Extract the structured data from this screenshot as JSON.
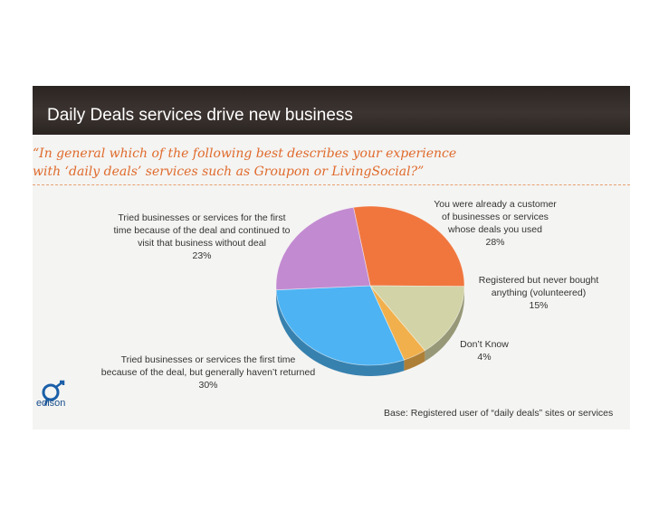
{
  "slide": {
    "title": "Daily Deals services drive new business",
    "subtitle_line1": "“In general which of the following best describes your experience",
    "subtitle_line2": "with ‘daily deals’ services such as Groupon or LivingSocial?”",
    "base_note": "Base: Registered user of “daily deals” sites or services",
    "logo_text": "edison"
  },
  "chart_data": {
    "type": "pie",
    "title": "",
    "slices": [
      {
        "label_lines": [
          "You were already a customer",
          "of businesses or services",
          "whose deals you used",
          "28%"
        ],
        "value": 28,
        "color": "#f0763e"
      },
      {
        "label_lines": [
          "Registered but never bought",
          "anything (volunteered)",
          "15%"
        ],
        "value": 15,
        "color": "#d2d3a6"
      },
      {
        "label_lines": [
          "Don’t Know",
          "4%"
        ],
        "value": 4,
        "color": "#f1b04c"
      },
      {
        "label_lines": [
          "Tried businesses or services the first time",
          "because of the deal, but generally haven’t returned",
          "30%"
        ],
        "value": 30,
        "color": "#4db3f3"
      },
      {
        "label_lines": [
          "Tried businesses or services for the first",
          "time because of the deal and continued to",
          "visit that business without deal",
          "23%"
        ],
        "value": 23,
        "color": "#c28ad0"
      }
    ]
  }
}
